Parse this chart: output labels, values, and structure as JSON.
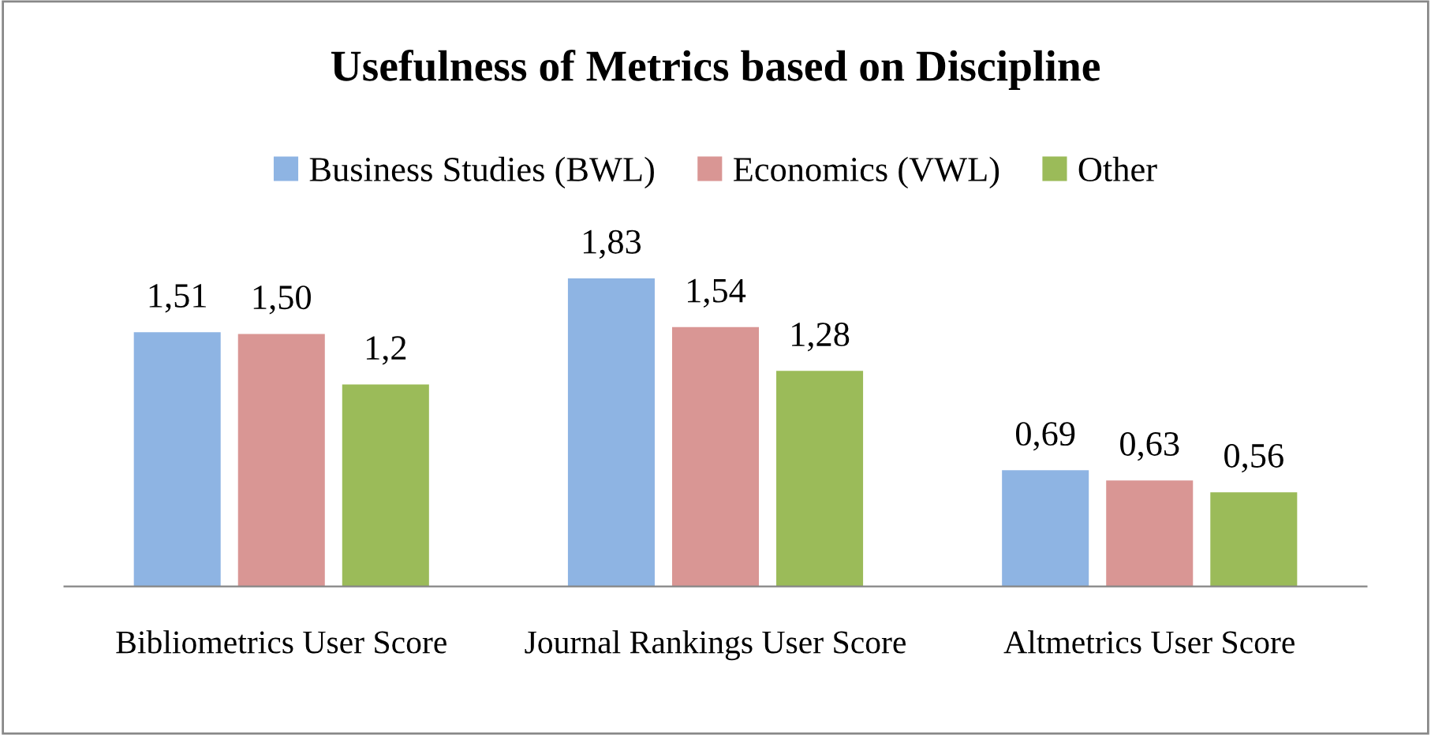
{
  "chart_data": {
    "type": "bar",
    "title": "Usefulness of Metrics based on Discipline",
    "categories": [
      "Bibliometrics User Score",
      "Journal Rankings User Score",
      "Altmetrics User Score"
    ],
    "series": [
      {
        "name": "Business Studies (BWL)",
        "color": "#8eb4e3",
        "values": [
          1.51,
          1.83,
          0.69
        ],
        "value_labels": [
          "1,51",
          "1,83",
          "0,69"
        ]
      },
      {
        "name": "Economics (VWL)",
        "color": "#d99694",
        "values": [
          1.5,
          1.54,
          0.63
        ],
        "value_labels": [
          "1,50",
          "1,54",
          "0,63"
        ]
      },
      {
        "name": "Other",
        "color": "#9bbb59",
        "values": [
          1.2,
          1.28,
          0.56
        ],
        "value_labels": [
          "1,2",
          "1,28",
          "0,56"
        ]
      }
    ],
    "legend": "top",
    "grid": false
  }
}
